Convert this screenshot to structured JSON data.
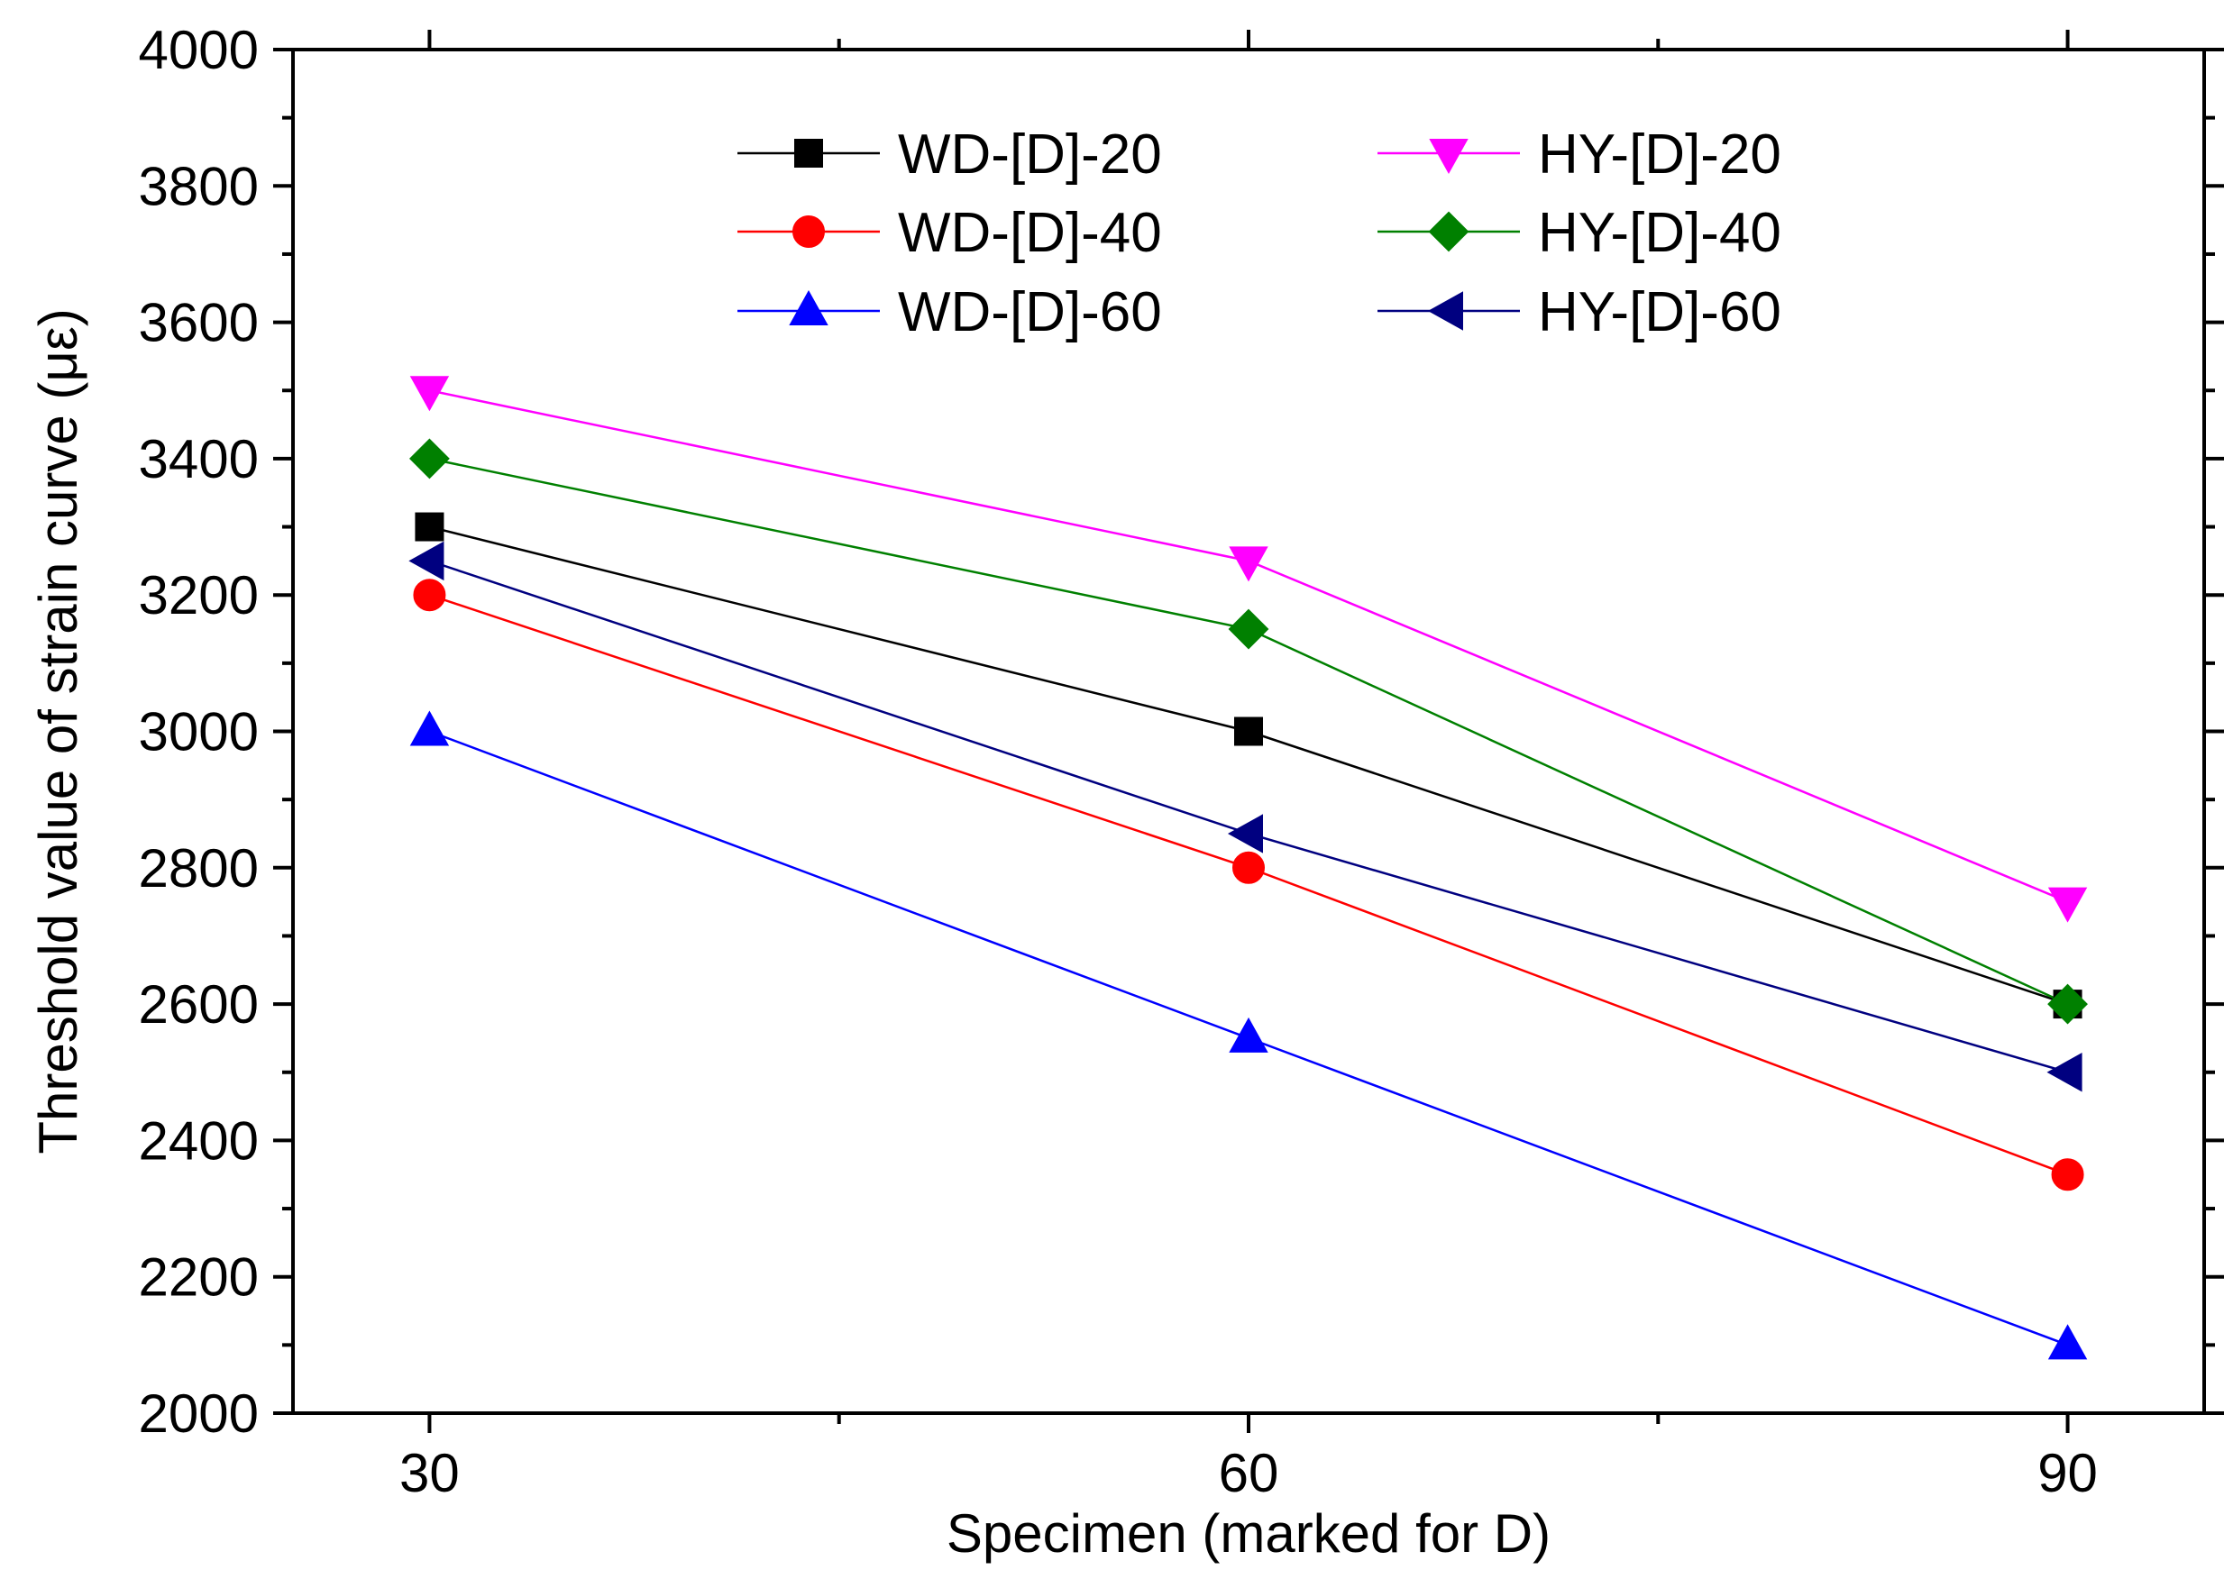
{
  "chart_data": {
    "type": "line",
    "title": "",
    "xlabel": "Specimen (marked for D)",
    "ylabel": "Threshold value of strain curve (με)",
    "x": [
      30,
      60,
      90
    ],
    "xlim": [
      25,
      95
    ],
    "ylim": [
      2000,
      4000
    ],
    "xticks": [
      30,
      60,
      90
    ],
    "x_minor_ticks": [
      45,
      75
    ],
    "yticks": [
      2000,
      2200,
      2400,
      2600,
      2800,
      3000,
      3200,
      3400,
      3600,
      3800,
      4000
    ],
    "y_minor_step": 100,
    "grid": false,
    "legend_position": "top",
    "series": [
      {
        "name": "WD-[D]-20",
        "values": [
          3300,
          3000,
          2600
        ],
        "color": "#000000",
        "marker": "square"
      },
      {
        "name": "WD-[D]-40",
        "values": [
          3200,
          2800,
          2350
        ],
        "color": "#ff0000",
        "marker": "circle"
      },
      {
        "name": "WD-[D]-60",
        "values": [
          3000,
          2550,
          2100
        ],
        "color": "#0000ff",
        "marker": "triangle-up"
      },
      {
        "name": "HY-[D]-20",
        "values": [
          3500,
          3250,
          2750
        ],
        "color": "#ff00ff",
        "marker": "triangle-down"
      },
      {
        "name": "HY-[D]-40",
        "values": [
          3400,
          3150,
          2600
        ],
        "color": "#008000",
        "marker": "diamond"
      },
      {
        "name": "HY-[D]-60",
        "values": [
          3250,
          2850,
          2500
        ],
        "color": "#000080",
        "marker": "triangle-left"
      }
    ]
  }
}
